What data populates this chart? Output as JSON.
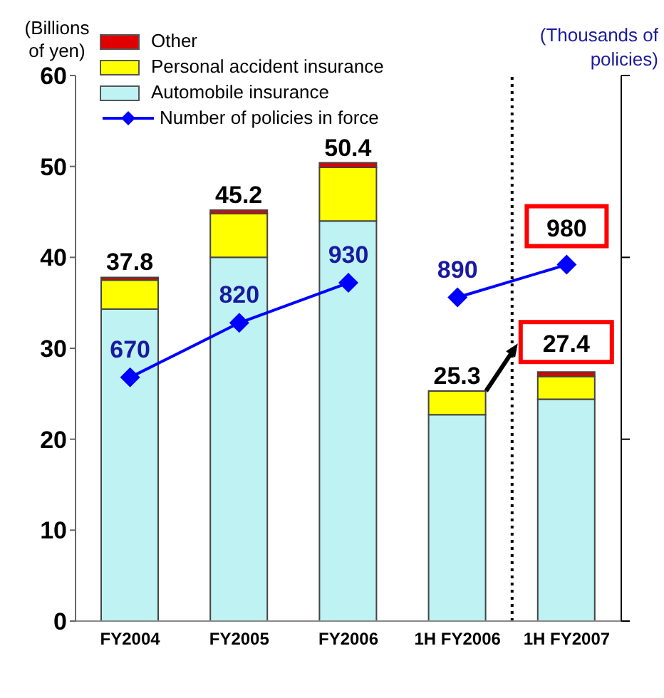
{
  "chart_data": {
    "type": "bar",
    "stacked": true,
    "ylabel": "(Billions of yen)",
    "y2label": "(Thousands of policies)",
    "categories": [
      "FY2004",
      "FY2005",
      "FY2006",
      "1H FY2006",
      "1H FY2007"
    ],
    "series": [
      {
        "name": "Automobile insurance",
        "color": "#bff2f2",
        "values": [
          34.3,
          40.0,
          44.0,
          22.7,
          24.4
        ]
      },
      {
        "name": "Personal accident insurance",
        "color": "#ffff00",
        "values": [
          3.2,
          4.8,
          5.9,
          2.6,
          2.5
        ]
      },
      {
        "name": "Other",
        "color": "#e00000",
        "values": [
          0.3,
          0.4,
          0.5,
          0,
          0.5
        ]
      },
      {
        "name": "Number of policies in force",
        "type": "line",
        "axis": "y2",
        "color": "#0000ff",
        "values": [
          670,
          820,
          930,
          null,
          null
        ],
        "value_labels": [
          "670",
          "820",
          "930",
          null,
          null
        ]
      },
      {
        "type": "line",
        "axis": "y2",
        "color": "#0000ff",
        "values": [
          null,
          null,
          null,
          890,
          980
        ],
        "value_labels": [
          null,
          null,
          null,
          "890",
          "980"
        ]
      }
    ],
    "totals": [
      "37.8",
      "45.2",
      "50.4",
      "25.3",
      "27.4"
    ],
    "ylim": [
      0,
      60
    ],
    "yticks": [
      0,
      10,
      20,
      30,
      40,
      50,
      60
    ],
    "y2lim": [
      0,
      1500
    ],
    "y2ticks": [
      {
        "value": 0,
        "label": null
      },
      {
        "value": 500,
        "label": null
      },
      {
        "value": 1000,
        "label": null
      },
      {
        "value": 1500,
        "label": null
      }
    ],
    "marker": "diamond",
    "line_style": "solid",
    "legend": "top left"
  }
}
